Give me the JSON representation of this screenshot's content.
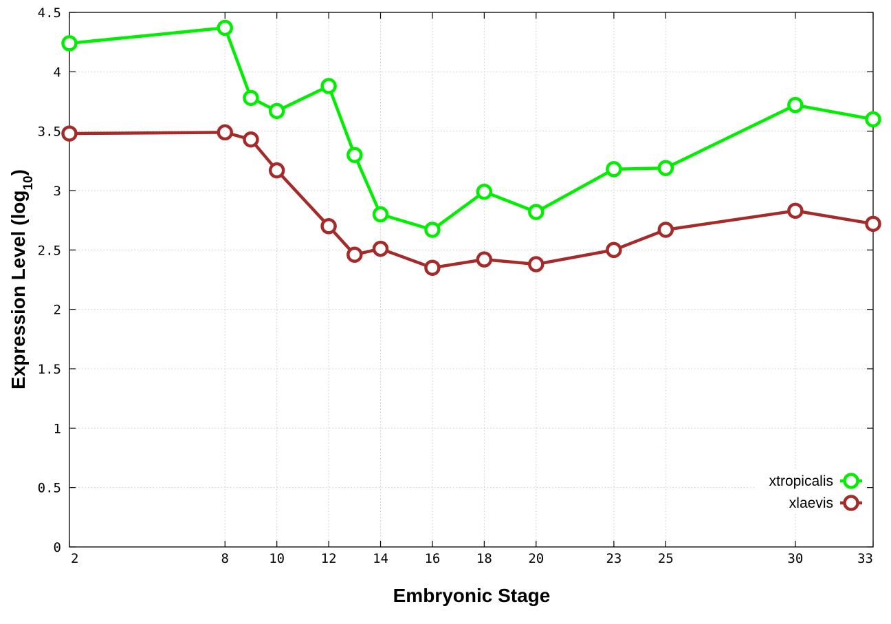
{
  "chart_data": {
    "type": "line",
    "title": "",
    "xlabel": "Embryonic Stage",
    "ylabel": "Expression Level (log",
    "ylabel_subscript": "10",
    "ylabel_close": ")",
    "x_ticks": [
      2,
      8,
      10,
      12,
      14,
      16,
      18,
      20,
      23,
      25,
      30,
      33
    ],
    "y_ticks": [
      "0",
      "0.5",
      "1",
      "1.5",
      "2",
      "2.5",
      "3",
      "3.5",
      "4",
      "4.5"
    ],
    "xlim": [
      2,
      33
    ],
    "ylim": [
      0,
      4.5
    ],
    "grid": true,
    "legend_position": "bottom-right",
    "series": [
      {
        "name": "xtropicalis",
        "color": "#00ee00",
        "x": [
          2,
          8,
          9,
          10,
          12,
          13,
          14,
          16,
          18,
          20,
          23,
          25,
          30,
          33
        ],
        "y": [
          4.24,
          4.37,
          3.78,
          3.67,
          3.88,
          3.3,
          2.8,
          2.67,
          2.99,
          2.82,
          3.18,
          3.19,
          3.72,
          3.6
        ]
      },
      {
        "name": "xlaevis",
        "color": "#a52a2a",
        "x": [
          2,
          8,
          9,
          10,
          12,
          13,
          14,
          16,
          18,
          20,
          23,
          25,
          30,
          33
        ],
        "y": [
          3.48,
          3.49,
          3.43,
          3.17,
          2.7,
          2.46,
          2.51,
          2.35,
          2.42,
          2.38,
          2.5,
          2.67,
          2.83,
          2.72
        ]
      }
    ]
  }
}
